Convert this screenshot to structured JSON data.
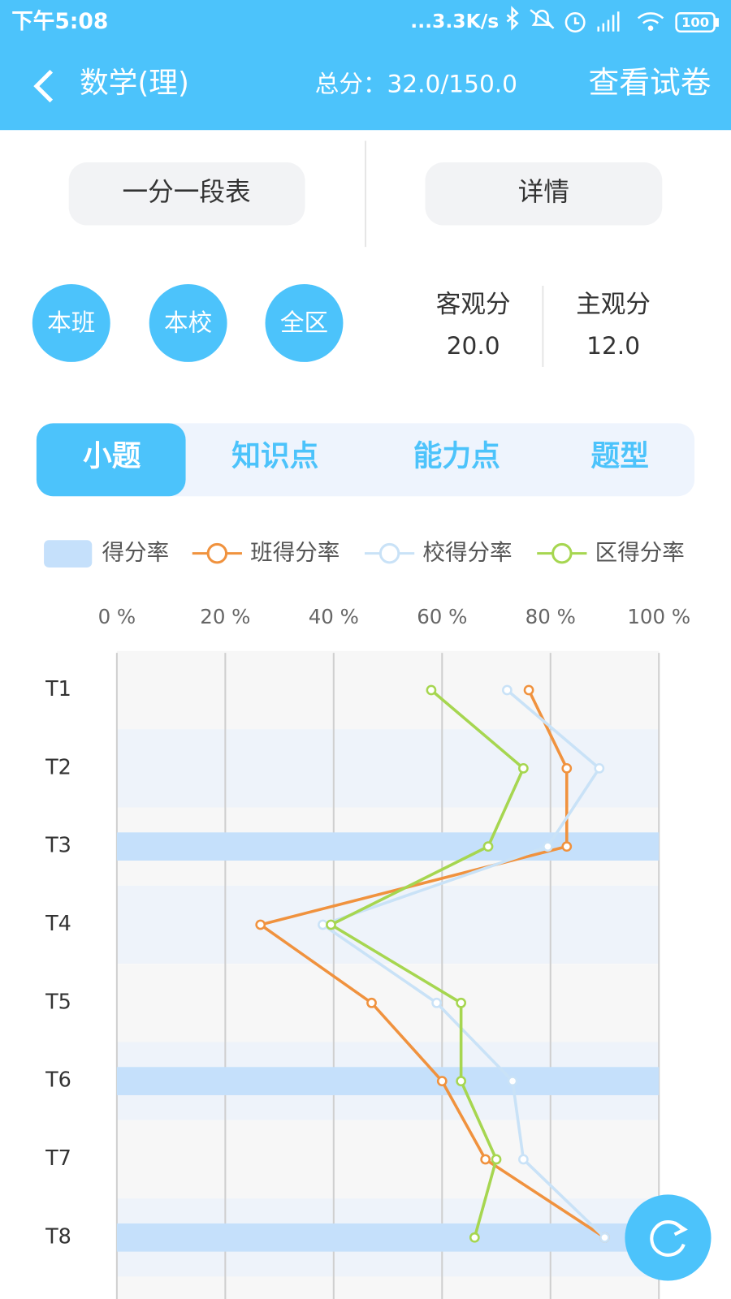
{
  "status_bar": {
    "time": "下午5:08",
    "network": "...3.3K/s",
    "battery": "100"
  },
  "header": {
    "title": "数学(理)",
    "total": "总分：32.0/150.0",
    "action": "查看试卷"
  },
  "buttons": [
    "一分一段表",
    "详情"
  ],
  "scope": [
    "本班",
    "本校",
    "全区"
  ],
  "scores": [
    {
      "label": "客观分",
      "value": "20.0"
    },
    {
      "label": "主观分",
      "value": "12.0"
    }
  ],
  "tabs": {
    "items": [
      "小题",
      "知识点",
      "能力点",
      "题型"
    ],
    "active": 0
  },
  "chart_data": {
    "type": "line",
    "orientation": "horizontal",
    "categories": [
      "T1",
      "T2",
      "T3",
      "T4",
      "T5",
      "T6",
      "T7",
      "T8"
    ],
    "xlim": [
      0,
      100
    ],
    "xticks": [
      {
        "value": 0,
        "label": "0 %"
      },
      {
        "value": 20,
        "label": "20 %"
      },
      {
        "value": 40,
        "label": "40 %"
      },
      {
        "value": 60,
        "label": "60 %"
      },
      {
        "value": 80,
        "label": "80 %"
      },
      {
        "value": 100,
        "label": "100 %"
      }
    ],
    "grid": true,
    "series": [
      {
        "name": "得分率",
        "type": "bar",
        "color": "#c5e0fb",
        "values": [
          0,
          0,
          100,
          0,
          0,
          100,
          0,
          100
        ]
      },
      {
        "name": "班得分率",
        "type": "line",
        "color": "#f0923e",
        "values": [
          76,
          83,
          83,
          26.5,
          47,
          60,
          68,
          90
        ]
      },
      {
        "name": "校得分率",
        "type": "line",
        "color": "#c9e2f7",
        "values": [
          72,
          89,
          79.5,
          38,
          59,
          73,
          75,
          90
        ]
      },
      {
        "name": "区得分率",
        "type": "line",
        "color": "#a6d650",
        "values": [
          58,
          75,
          68.5,
          39.5,
          63.5,
          63.5,
          70,
          66
        ]
      }
    ]
  }
}
